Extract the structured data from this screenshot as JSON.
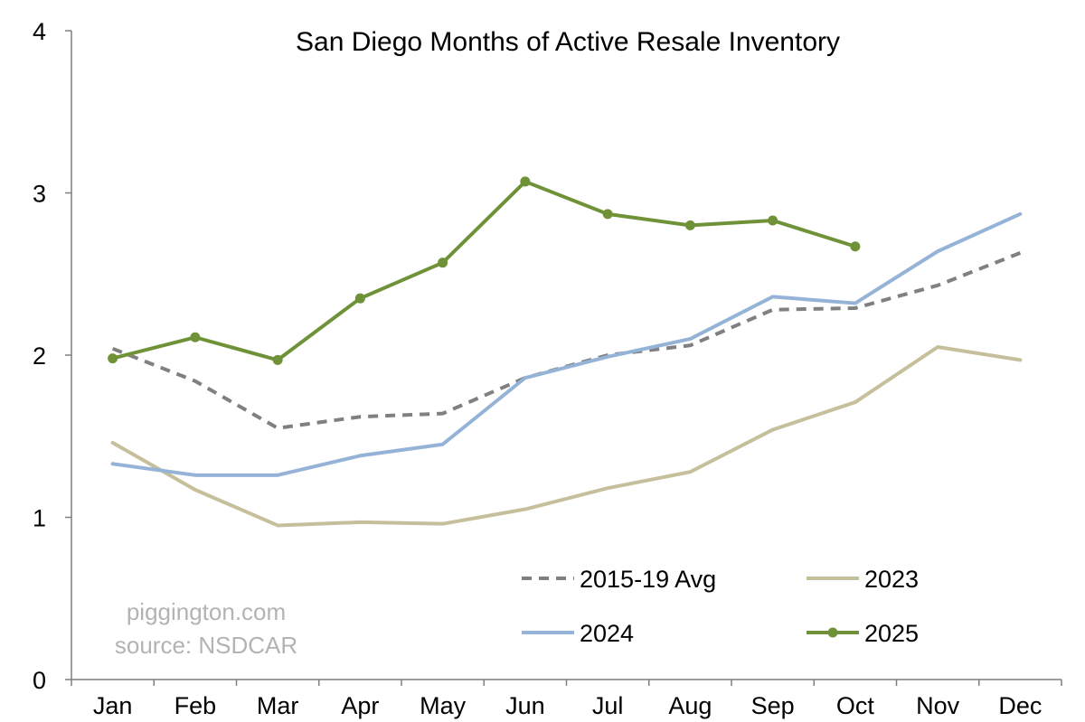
{
  "chart_data": {
    "type": "line",
    "title": "San Diego Months of Active Resale Inventory",
    "xlabel": "",
    "ylabel": "",
    "categories": [
      "Jan",
      "Feb",
      "Mar",
      "Apr",
      "May",
      "Jun",
      "Jul",
      "Aug",
      "Sep",
      "Oct",
      "Nov",
      "Dec"
    ],
    "ylim": [
      0,
      4
    ],
    "yticks": [
      "0",
      "1",
      "2",
      "3",
      "4"
    ],
    "grid": false,
    "legend_position": "bottom-right",
    "series": [
      {
        "name": "2015-19 Avg",
        "color": "#808080",
        "style": "dashed",
        "markers": false,
        "values": [
          2.04,
          1.84,
          1.55,
          1.62,
          1.64,
          1.86,
          2.0,
          2.06,
          2.28,
          2.29,
          2.43,
          2.63
        ]
      },
      {
        "name": "2023",
        "color": "#c6bf9c",
        "style": "solid",
        "markers": false,
        "values": [
          1.46,
          1.17,
          0.95,
          0.97,
          0.96,
          1.05,
          1.18,
          1.28,
          1.54,
          1.71,
          2.05,
          1.97
        ]
      },
      {
        "name": "2024",
        "color": "#95b3d7",
        "style": "solid",
        "markers": false,
        "values": [
          1.33,
          1.26,
          1.26,
          1.38,
          1.45,
          1.86,
          1.99,
          2.1,
          2.36,
          2.32,
          2.64,
          2.87
        ]
      },
      {
        "name": "2025",
        "color": "#6f9238",
        "style": "solid",
        "markers": true,
        "values": [
          1.98,
          2.11,
          1.97,
          2.35,
          2.57,
          3.07,
          2.87,
          2.8,
          2.83,
          2.67,
          null,
          null
        ]
      }
    ],
    "annotations": [
      "piggington.com",
      "source: NSDCAR"
    ]
  }
}
